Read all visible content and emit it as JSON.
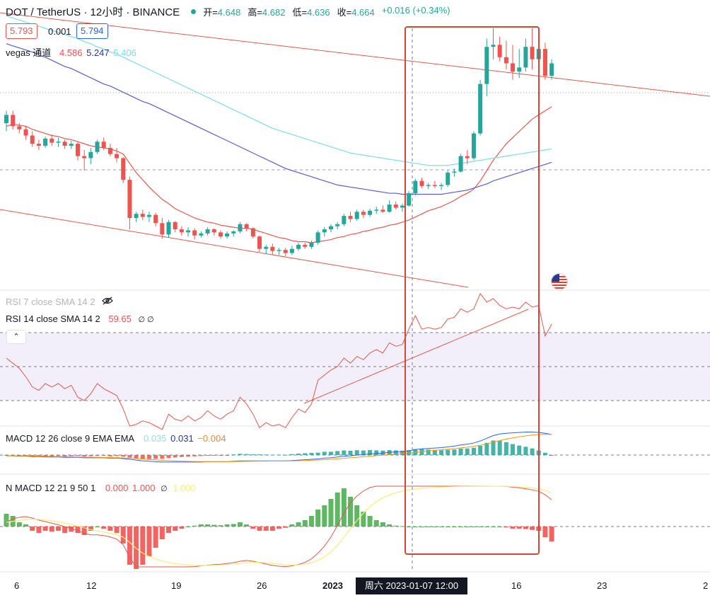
{
  "header": {
    "symbol": "DOT / TetherUS · 12小时 · BINANCE",
    "open_label": "开=",
    "open": "4.648",
    "high_label": "高=",
    "high": "4.682",
    "low_label": "低=",
    "low": "4.636",
    "close_label": "收=",
    "close": "4.664",
    "change": "+0.016 (+0.34%)"
  },
  "price_boxes": {
    "bid": "5.793",
    "spread": "0.001",
    "ask": "5.794"
  },
  "vegas": {
    "label": "vegas 通道",
    "v1": "4.586",
    "v2": "5.247",
    "v3": "5.406"
  },
  "rsi7": {
    "label": "RSI 7 close SMA 14 2"
  },
  "rsi14": {
    "label": "RSI 14 close SMA 14 2",
    "value": "59.65",
    "extra": "∅ ∅"
  },
  "macd": {
    "label": "MACD 12 26 close 9 EMA EMA",
    "v1": "0.035",
    "v2": "0.031",
    "v3": "−0.004"
  },
  "nmacd": {
    "label": "N MACD 12 21 9 50 1",
    "v1": "0.000",
    "v2": "1.000",
    "extra": "∅",
    "v3": "1.000"
  },
  "xaxis": {
    "t6": "6",
    "t12": "12",
    "t19": "19",
    "t26": "26",
    "t2023": "2023",
    "t16": "16",
    "t23": "23",
    "t2": "2"
  },
  "crosshair_label": "周六 2023-01-07   12:00",
  "colors": {
    "up": "#26a69a",
    "down": "#ef5350",
    "ema_red": "#e05a4f",
    "ema_blue": "#5b5fc7",
    "ema_cyan": "#7fdbe8",
    "rsi": "#e05a4f",
    "highlight": "#d9462f"
  },
  "chart_data": {
    "type": "candlestick",
    "series": [
      {
        "name": "DOT / TetherUS",
        "ohlc": [
          [
            4.58,
            4.7,
            4.5,
            4.66
          ],
          [
            4.66,
            4.7,
            4.52,
            4.55
          ],
          [
            4.55,
            4.58,
            4.48,
            4.52
          ],
          [
            4.52,
            4.55,
            4.42,
            4.46
          ],
          [
            4.46,
            4.5,
            4.35,
            4.38
          ],
          [
            4.38,
            4.42,
            4.32,
            4.36
          ],
          [
            4.36,
            4.45,
            4.34,
            4.43
          ],
          [
            4.43,
            4.47,
            4.36,
            4.39
          ],
          [
            4.39,
            4.44,
            4.35,
            4.4
          ],
          [
            4.4,
            4.42,
            4.33,
            4.36
          ],
          [
            4.36,
            4.41,
            4.33,
            4.38
          ],
          [
            4.38,
            4.4,
            4.22,
            4.26
          ],
          [
            4.26,
            4.32,
            4.12,
            4.24
          ],
          [
            4.24,
            4.34,
            4.18,
            4.3
          ],
          [
            4.3,
            4.42,
            4.28,
            4.4
          ],
          [
            4.4,
            4.44,
            4.32,
            4.34
          ],
          [
            4.34,
            4.38,
            4.26,
            4.28
          ],
          [
            4.28,
            4.34,
            4.2,
            4.24
          ],
          [
            4.24,
            4.25,
            4.0,
            4.03
          ],
          [
            4.03,
            4.06,
            3.55,
            3.66
          ],
          [
            3.66,
            3.72,
            3.62,
            3.7
          ],
          [
            3.7,
            3.74,
            3.64,
            3.67
          ],
          [
            3.67,
            3.72,
            3.62,
            3.69
          ],
          [
            3.69,
            3.71,
            3.58,
            3.61
          ],
          [
            3.61,
            3.66,
            3.46,
            3.5
          ],
          [
            3.5,
            3.64,
            3.47,
            3.62
          ],
          [
            3.62,
            3.63,
            3.52,
            3.55
          ],
          [
            3.55,
            3.58,
            3.49,
            3.52
          ],
          [
            3.52,
            3.57,
            3.48,
            3.54
          ],
          [
            3.54,
            3.56,
            3.45,
            3.49
          ],
          [
            3.49,
            3.53,
            3.47,
            3.51
          ],
          [
            3.51,
            3.57,
            3.49,
            3.55
          ],
          [
            3.55,
            3.56,
            3.49,
            3.52
          ],
          [
            3.52,
            3.54,
            3.46,
            3.48
          ],
          [
            3.48,
            3.53,
            3.46,
            3.51
          ],
          [
            3.51,
            3.54,
            3.48,
            3.53
          ],
          [
            3.53,
            3.62,
            3.51,
            3.6
          ],
          [
            3.6,
            3.61,
            3.53,
            3.56
          ],
          [
            3.56,
            3.57,
            3.46,
            3.48
          ],
          [
            3.48,
            3.49,
            3.33,
            3.36
          ],
          [
            3.36,
            3.4,
            3.31,
            3.38
          ],
          [
            3.38,
            3.41,
            3.3,
            3.34
          ],
          [
            3.34,
            3.37,
            3.3,
            3.35
          ],
          [
            3.35,
            3.37,
            3.29,
            3.32
          ],
          [
            3.32,
            3.39,
            3.3,
            3.36
          ],
          [
            3.36,
            3.42,
            3.34,
            3.4
          ],
          [
            3.4,
            3.42,
            3.36,
            3.38
          ],
          [
            3.38,
            3.44,
            3.36,
            3.42
          ],
          [
            3.42,
            3.54,
            3.4,
            3.52
          ],
          [
            3.52,
            3.57,
            3.48,
            3.55
          ],
          [
            3.55,
            3.6,
            3.52,
            3.58
          ],
          [
            3.58,
            3.62,
            3.55,
            3.6
          ],
          [
            3.6,
            3.7,
            3.58,
            3.68
          ],
          [
            3.68,
            3.72,
            3.62,
            3.65
          ],
          [
            3.65,
            3.74,
            3.63,
            3.72
          ],
          [
            3.72,
            3.74,
            3.66,
            3.69
          ],
          [
            3.69,
            3.75,
            3.67,
            3.73
          ],
          [
            3.73,
            3.77,
            3.7,
            3.74
          ],
          [
            3.74,
            3.78,
            3.71,
            3.72
          ],
          [
            3.72,
            3.83,
            3.71,
            3.79
          ],
          [
            3.79,
            3.82,
            3.74,
            3.76
          ],
          [
            3.76,
            3.8,
            3.72,
            3.78
          ],
          [
            3.78,
            3.92,
            3.77,
            3.9
          ],
          [
            3.9,
            4.04,
            3.88,
            4.02
          ],
          [
            4.02,
            4.05,
            3.95,
            3.97
          ],
          [
            3.97,
            4.0,
            3.94,
            3.98
          ],
          [
            3.98,
            4.02,
            3.95,
            3.97
          ],
          [
            3.97,
            4.0,
            3.93,
            3.98
          ],
          [
            3.98,
            4.12,
            3.96,
            4.1
          ],
          [
            4.1,
            4.14,
            4.06,
            4.11
          ],
          [
            4.11,
            4.28,
            4.1,
            4.26
          ],
          [
            4.26,
            4.32,
            4.18,
            4.24
          ],
          [
            4.24,
            4.5,
            4.22,
            4.48
          ],
          [
            4.48,
            5.0,
            4.46,
            4.96
          ],
          [
            4.96,
            5.4,
            4.84,
            5.32
          ],
          [
            5.32,
            5.5,
            5.2,
            5.34
          ],
          [
            5.34,
            5.42,
            5.18,
            5.22
          ],
          [
            5.22,
            5.38,
            5.1,
            5.16
          ],
          [
            5.16,
            5.34,
            5.0,
            5.08
          ],
          [
            5.08,
            5.3,
            5.02,
            5.12
          ],
          [
            5.12,
            5.4,
            5.08,
            5.32
          ],
          [
            5.32,
            5.5,
            5.1,
            5.2
          ],
          [
            5.2,
            5.42,
            5.1,
            5.3
          ],
          [
            5.3,
            5.36,
            5.0,
            5.04
          ],
          [
            5.04,
            5.2,
            5.0,
            5.16
          ]
        ]
      },
      {
        "name": "vegas EMA 1",
        "values": [
          4.55,
          4.57,
          4.56,
          4.55,
          4.52,
          4.5,
          4.48,
          4.46,
          4.45,
          4.43,
          4.42,
          4.4,
          4.38,
          4.36,
          4.35,
          4.34,
          4.33,
          4.31,
          4.28,
          4.19,
          4.1,
          4.03,
          3.96,
          3.9,
          3.84,
          3.8,
          3.75,
          3.72,
          3.69,
          3.66,
          3.64,
          3.62,
          3.61,
          3.59,
          3.58,
          3.57,
          3.56,
          3.56,
          3.55,
          3.53,
          3.51,
          3.49,
          3.47,
          3.46,
          3.44,
          3.43,
          3.43,
          3.42,
          3.43,
          3.44,
          3.45,
          3.47,
          3.48,
          3.5,
          3.51,
          3.53,
          3.54,
          3.56,
          3.57,
          3.59,
          3.6,
          3.62,
          3.64,
          3.67,
          3.7,
          3.73,
          3.75,
          3.77,
          3.8,
          3.83,
          3.87,
          3.9,
          3.94,
          4.02,
          4.12,
          4.22,
          4.3,
          4.38,
          4.44,
          4.5,
          4.56,
          4.62,
          4.66,
          4.7,
          4.74
        ]
      },
      {
        "name": "vegas EMA 2",
        "values": [
          5.35,
          5.33,
          5.31,
          5.29,
          5.27,
          5.24,
          5.22,
          5.19,
          5.16,
          5.13,
          5.11,
          5.08,
          5.05,
          5.02,
          4.99,
          4.96,
          4.94,
          4.91,
          4.88,
          4.85,
          4.82,
          4.79,
          4.77,
          4.74,
          4.71,
          4.68,
          4.65,
          4.62,
          4.59,
          4.56,
          4.53,
          4.5,
          4.47,
          4.44,
          4.41,
          4.38,
          4.35,
          4.32,
          4.29,
          4.26,
          4.23,
          4.2,
          4.17,
          4.14,
          4.12,
          4.1,
          4.08,
          4.06,
          4.04,
          4.02,
          4.0,
          3.98,
          3.97,
          3.96,
          3.95,
          3.94,
          3.93,
          3.92,
          3.91,
          3.9,
          3.9,
          3.89,
          3.89,
          3.89,
          3.89,
          3.89,
          3.89,
          3.89,
          3.9,
          3.91,
          3.92,
          3.93,
          3.95,
          3.97,
          3.99,
          4.02,
          4.04,
          4.06,
          4.08,
          4.1,
          4.12,
          4.14,
          4.16,
          4.18,
          4.2
        ]
      },
      {
        "name": "vegas EMA 3",
        "values": [
          5.62,
          5.6,
          5.58,
          5.56,
          5.54,
          5.52,
          5.5,
          5.48,
          5.46,
          5.44,
          5.42,
          5.4,
          5.37,
          5.35,
          5.32,
          5.3,
          5.27,
          5.25,
          5.22,
          5.19,
          5.16,
          5.13,
          5.1,
          5.07,
          5.04,
          5.01,
          4.98,
          4.95,
          4.92,
          4.89,
          4.86,
          4.83,
          4.8,
          4.77,
          4.74,
          4.71,
          4.68,
          4.65,
          4.62,
          4.59,
          4.56,
          4.53,
          4.51,
          4.49,
          4.47,
          4.45,
          4.43,
          4.41,
          4.39,
          4.37,
          4.35,
          4.33,
          4.31,
          4.29,
          4.28,
          4.27,
          4.26,
          4.25,
          4.24,
          4.23,
          4.22,
          4.21,
          4.2,
          4.19,
          4.18,
          4.17,
          4.17,
          4.17,
          4.17,
          4.18,
          4.19,
          4.2,
          4.21,
          4.22,
          4.23,
          4.24,
          4.25,
          4.26,
          4.27,
          4.28,
          4.29,
          4.3,
          4.31,
          4.32,
          4.33
        ]
      },
      {
        "name": "RSI 14",
        "values": [
          55,
          52,
          49,
          44,
          38,
          36,
          40,
          38,
          40,
          37,
          39,
          32,
          30,
          34,
          40,
          37,
          35,
          33,
          25,
          15,
          16,
          18,
          17,
          15,
          13,
          22,
          19,
          18,
          21,
          18,
          20,
          24,
          21,
          19,
          22,
          24,
          32,
          28,
          22,
          14,
          17,
          15,
          16,
          14,
          20,
          25,
          23,
          28,
          42,
          45,
          48,
          50,
          55,
          52,
          56,
          54,
          58,
          60,
          58,
          64,
          62,
          63,
          72,
          80,
          72,
          73,
          72,
          73,
          78,
          79,
          84,
          82,
          84,
          93,
          88,
          90,
          86,
          84,
          85,
          84,
          88,
          85,
          86,
          68,
          75
        ]
      },
      {
        "name": "MACD",
        "values": [
          -0.02,
          -0.02,
          -0.03,
          -0.03,
          -0.04,
          -0.04,
          -0.05,
          -0.05,
          -0.05,
          -0.06,
          -0.06,
          -0.06,
          -0.07,
          -0.07,
          -0.07,
          -0.07,
          -0.08,
          -0.08,
          -0.09,
          -0.11,
          -0.13,
          -0.15,
          -0.16,
          -0.17,
          -0.18,
          -0.18,
          -0.18,
          -0.18,
          -0.18,
          -0.18,
          -0.18,
          -0.17,
          -0.17,
          -0.17,
          -0.17,
          -0.16,
          -0.15,
          -0.15,
          -0.15,
          -0.15,
          -0.15,
          -0.15,
          -0.15,
          -0.15,
          -0.14,
          -0.13,
          -0.12,
          -0.11,
          -0.1,
          -0.08,
          -0.07,
          -0.05,
          -0.03,
          -0.02,
          0.0,
          0.01,
          0.03,
          0.04,
          0.05,
          0.07,
          0.08,
          0.09,
          0.11,
          0.14,
          0.16,
          0.17,
          0.18,
          0.19,
          0.21,
          0.23,
          0.26,
          0.28,
          0.31,
          0.36,
          0.43,
          0.5,
          0.54,
          0.56,
          0.57,
          0.58,
          0.59,
          0.59,
          0.58,
          0.56,
          0.53
        ]
      },
      {
        "name": "N MACD histogram",
        "values": [
          0.3,
          0.25,
          0.1,
          0.05,
          -0.1,
          -0.15,
          -0.1,
          -0.12,
          -0.1,
          -0.15,
          -0.12,
          -0.15,
          -0.2,
          -0.1,
          0,
          -0.05,
          -0.1,
          -0.15,
          -0.4,
          -0.9,
          -1.0,
          -0.9,
          -0.7,
          -0.5,
          -0.3,
          -0.15,
          -0.1,
          -0.05,
          0,
          0.02,
          0.05,
          0.05,
          0.04,
          0.03,
          0.05,
          0.06,
          0.1,
          0.05,
          -0.05,
          -0.1,
          -0.1,
          -0.1,
          -0.05,
          -0.03,
          0.05,
          0.1,
          0.15,
          0.25,
          0.4,
          0.5,
          0.65,
          0.8,
          0.9,
          0.7,
          0.5,
          0.35,
          0.25,
          0.15,
          0.1,
          0.05,
          0.02,
          0.01,
          0,
          0,
          0,
          0,
          0,
          0,
          0,
          0,
          0,
          0,
          0,
          0,
          0,
          0,
          0,
          -0.02,
          -0.05,
          -0.05,
          -0.06,
          -0.08,
          -0.1,
          -0.25,
          -0.35
        ]
      }
    ]
  }
}
